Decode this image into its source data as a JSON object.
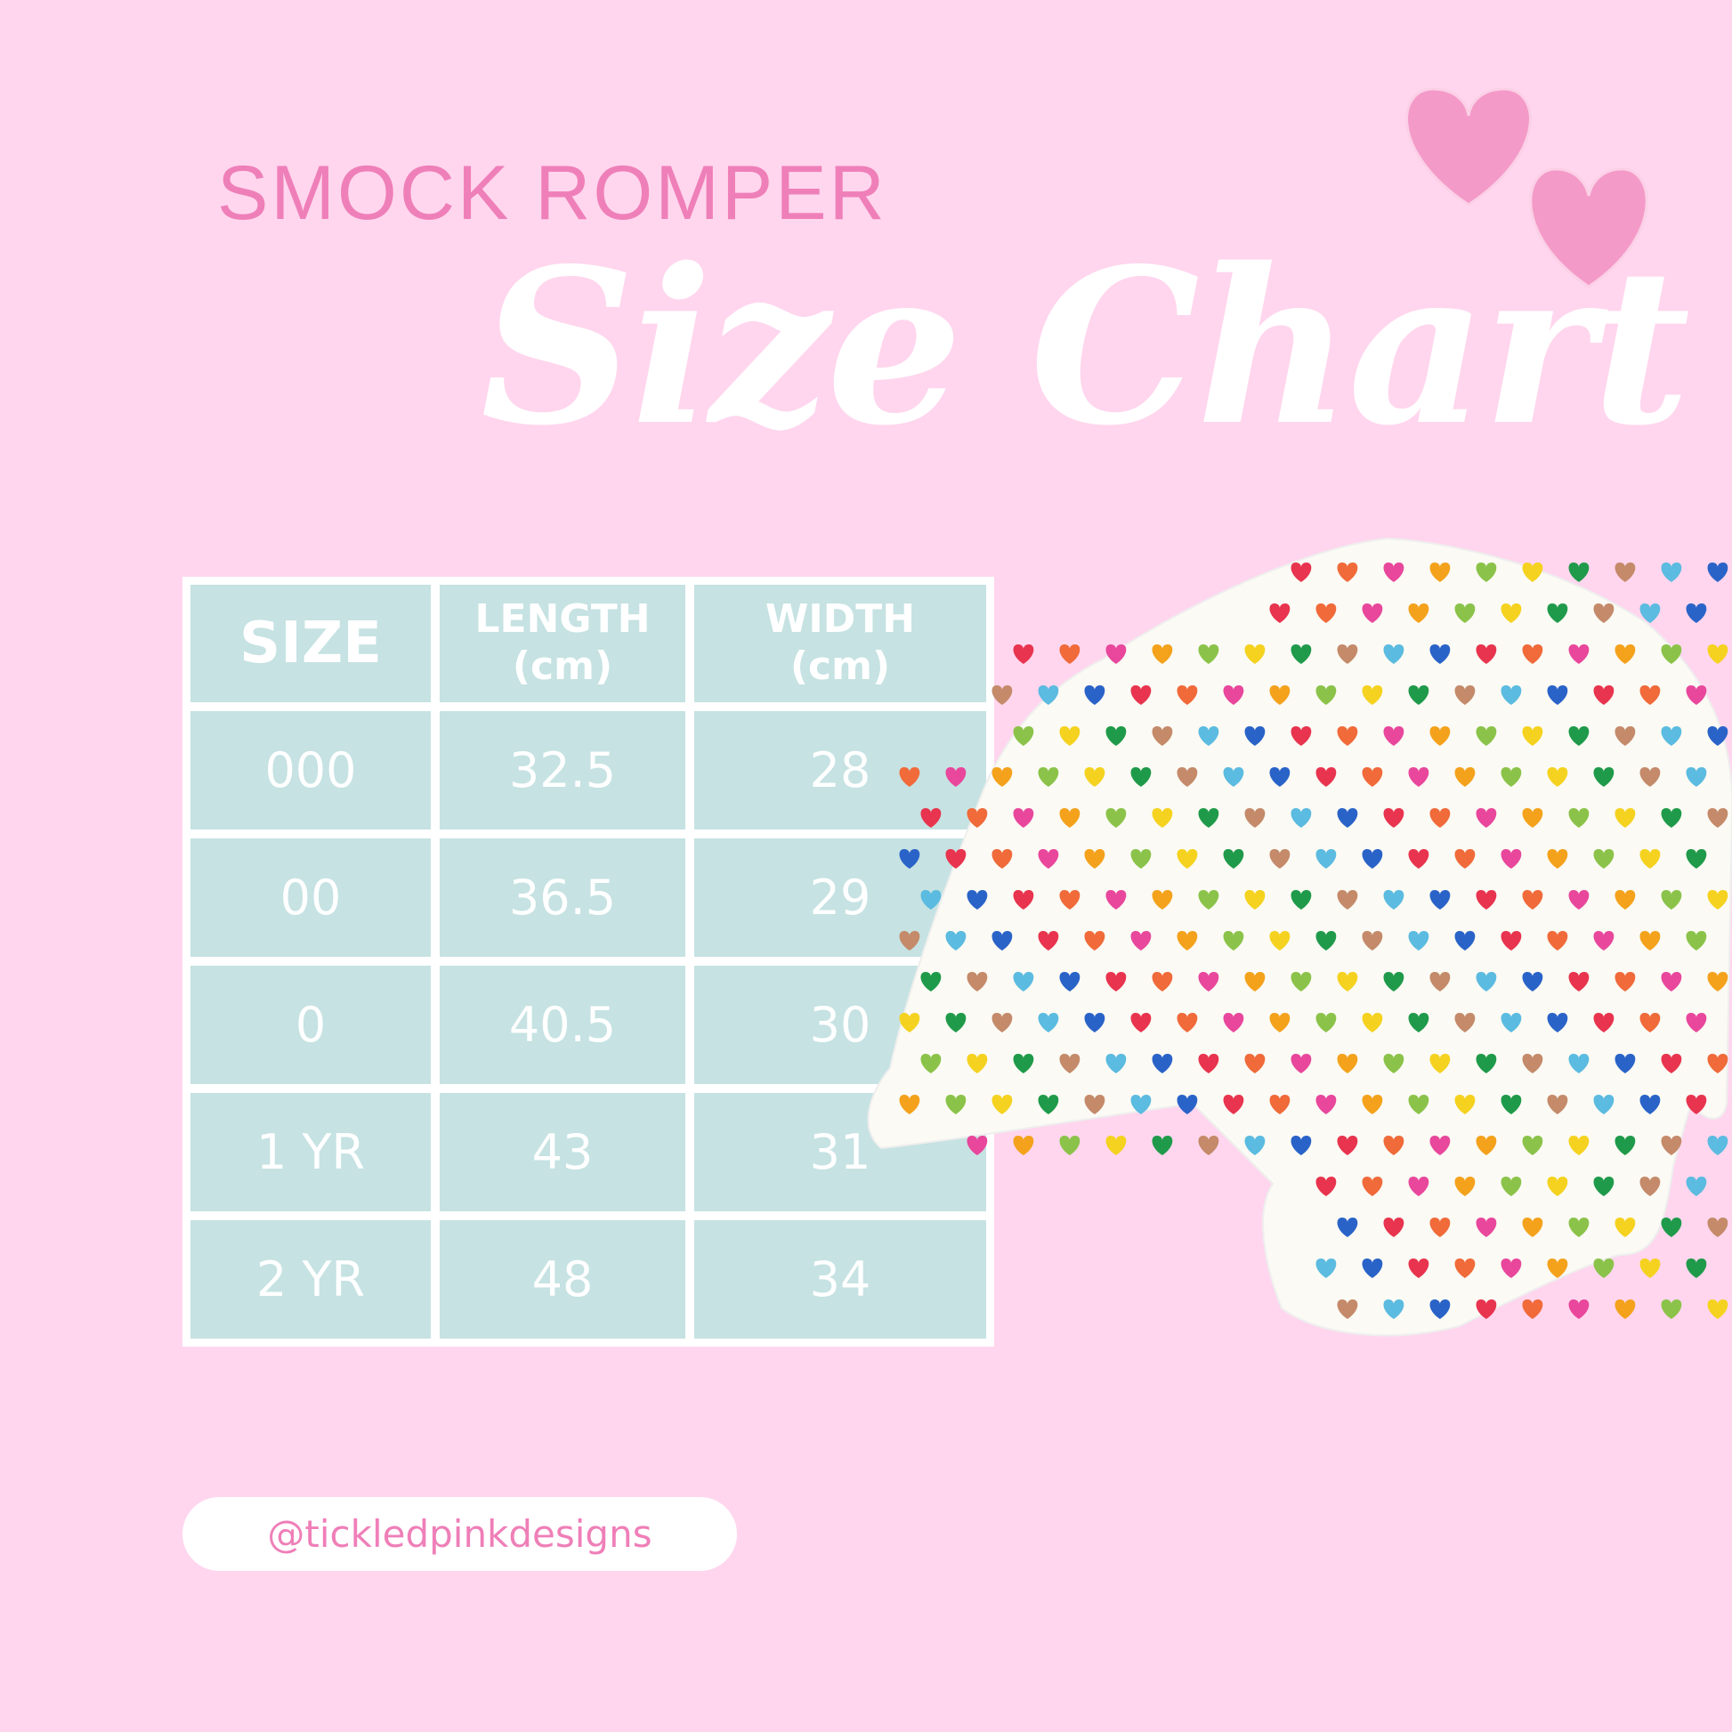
{
  "header": {
    "subtitle": "SMOCK ROMPER",
    "title": "Size Chart"
  },
  "table": {
    "columns": [
      "SIZE",
      "LENGTH\n(cm)",
      "WIDTH\n(cm)"
    ],
    "rows": [
      [
        "000",
        "32.5",
        "28"
      ],
      [
        "00",
        "36.5",
        "29"
      ],
      [
        "0",
        "40.5",
        "30"
      ],
      [
        "1 YR",
        "43",
        "31"
      ],
      [
        "2 YR",
        "48",
        "34"
      ]
    ]
  },
  "footer": {
    "handle": "@tickledpinkdesigns"
  }
}
